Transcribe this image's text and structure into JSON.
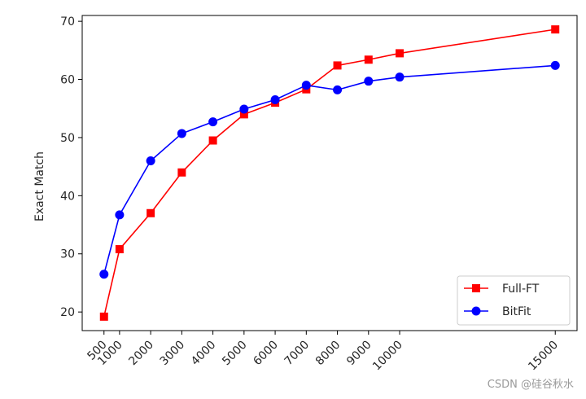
{
  "chart_data": {
    "type": "line",
    "title": "",
    "xlabel": "",
    "ylabel": "Exact Match",
    "x": [
      500,
      1000,
      2000,
      3000,
      4000,
      5000,
      6000,
      7000,
      8000,
      9000,
      10000,
      15000
    ],
    "x_tick_labels": [
      "500",
      "1000",
      "2000",
      "3000",
      "4000",
      "5000",
      "6000",
      "7000",
      "8000",
      "9000",
      "10000",
      "15000"
    ],
    "xlim": [
      -200,
      15700
    ],
    "ylim": [
      16.8,
      71
    ],
    "y_ticks": [
      20,
      30,
      40,
      50,
      60,
      70
    ],
    "grid": false,
    "legend_position": "lower-right",
    "series": [
      {
        "name": "Full-FT",
        "color": "#ff0000",
        "marker": "square",
        "values": [
          19.2,
          30.8,
          37.0,
          44.0,
          49.5,
          54.0,
          56.0,
          58.3,
          62.4,
          63.4,
          64.5,
          68.6
        ]
      },
      {
        "name": "BitFit",
        "color": "#0000ff",
        "marker": "circle",
        "values": [
          26.5,
          36.7,
          46.0,
          50.7,
          52.7,
          54.9,
          56.5,
          59.0,
          58.2,
          59.7,
          60.4,
          62.4
        ]
      }
    ]
  },
  "watermark": "CSDN @硅谷秋水"
}
